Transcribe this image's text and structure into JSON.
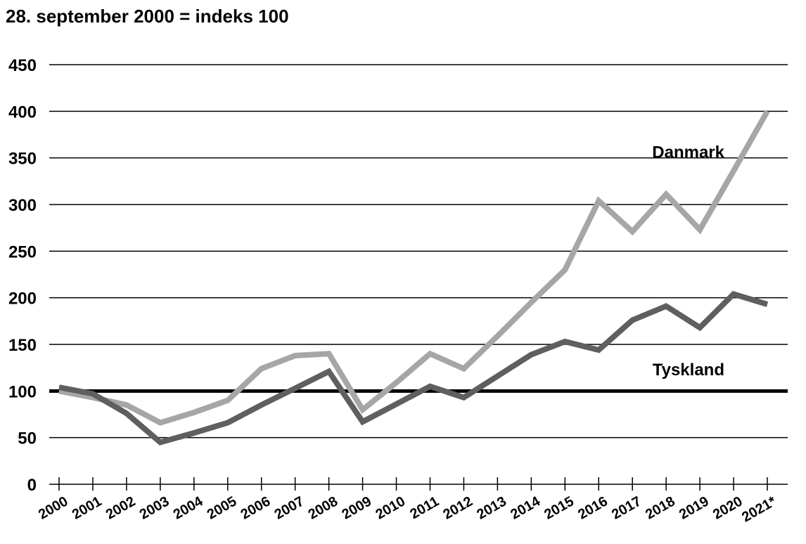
{
  "chart_data": {
    "type": "line",
    "title": "28. september 2000 = indeks 100",
    "xlabel": "",
    "ylabel": "",
    "categories": [
      "2000",
      "2001",
      "2002",
      "2003",
      "2004",
      "2005",
      "2006",
      "2007",
      "2008",
      "2009",
      "2010",
      "2011",
      "2012",
      "2013",
      "2014",
      "2015",
      "2016",
      "2017",
      "2018",
      "2019",
      "2020",
      "2021*"
    ],
    "ylim": [
      0,
      450
    ],
    "yticks": [
      0,
      50,
      100,
      150,
      200,
      250,
      300,
      350,
      400,
      450
    ],
    "grid": true,
    "reference_line": 100,
    "series": [
      {
        "name": "Danmark",
        "color": "#a6a6a6",
        "values": [
          100,
          93,
          85,
          66,
          77,
          90,
          124,
          138,
          140,
          80,
          109,
          140,
          124,
          159,
          195,
          230,
          304,
          271,
          311,
          273,
          336,
          400
        ]
      },
      {
        "name": "Tyskland",
        "color": "#5f5f5f",
        "values": [
          104,
          97,
          76,
          45,
          55,
          66,
          85,
          103,
          121,
          67,
          86,
          105,
          93,
          116,
          139,
          153,
          144,
          176,
          191,
          168,
          204,
          193
        ]
      }
    ]
  }
}
